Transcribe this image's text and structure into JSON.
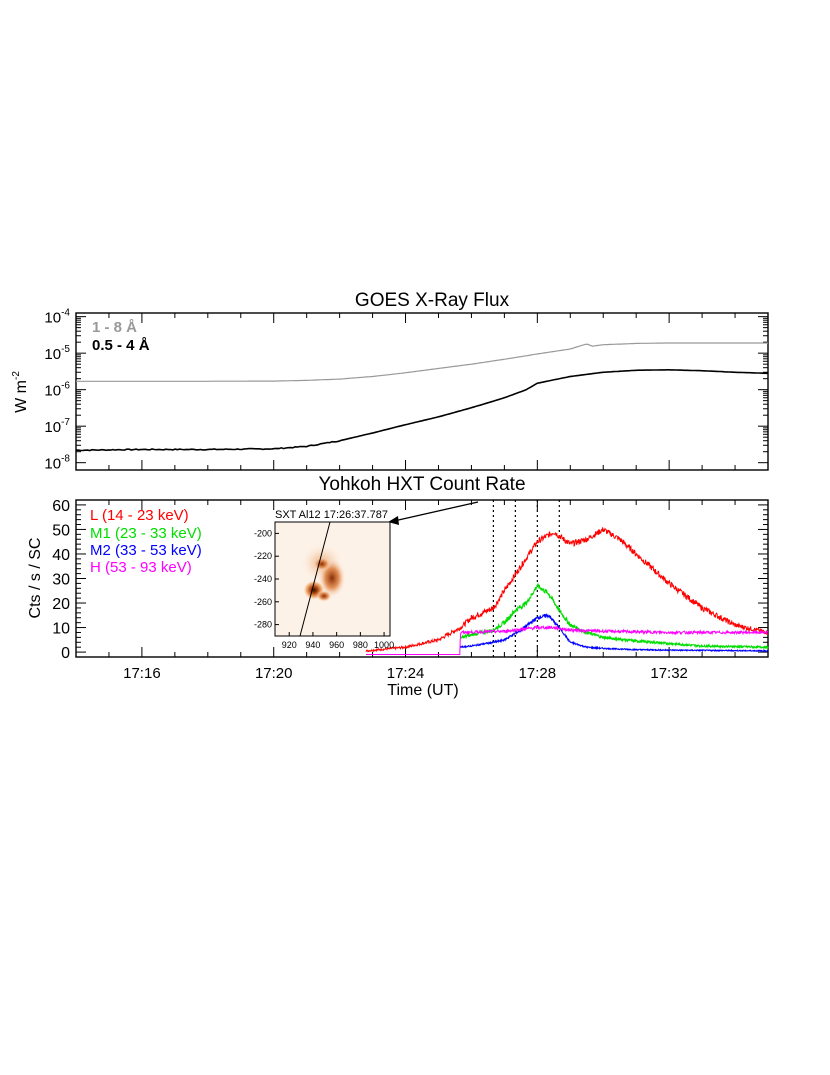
{
  "chart_data": [
    {
      "type": "line",
      "title": "GOES X-Ray Flux",
      "ylabel": "W m",
      "ylabel_sup": "-2",
      "yscale": "log",
      "ylim_exp": [
        -8.2,
        -3.9
      ],
      "yticks": [
        {
          "exp": -8,
          "base": "10",
          "sup": "-8"
        },
        {
          "exp": -7,
          "base": "10",
          "sup": "-7"
        },
        {
          "exp": -6,
          "base": "10",
          "sup": "-6"
        },
        {
          "exp": -5,
          "base": "10",
          "sup": "-5"
        },
        {
          "exp": -4,
          "base": "10",
          "sup": "-4"
        }
      ],
      "xlim": [
        "17:14",
        "17:35"
      ],
      "series": [
        {
          "name": "1 - 8 Å",
          "color": "#999999",
          "x": [
            "17:14",
            "17:16",
            "17:18",
            "17:20",
            "17:21",
            "17:22",
            "17:23",
            "17:24",
            "17:25",
            "17:26",
            "17:27",
            "17:28",
            "17:29",
            "17:29:30",
            "17:29:40",
            "17:30",
            "17:31",
            "17:32",
            "17:33",
            "17:35"
          ],
          "y": [
            1.7e-06,
            1.7e-06,
            1.7e-06,
            1.72e-06,
            1.8e-06,
            1.95e-06,
            2.3e-06,
            2.9e-06,
            3.8e-06,
            5e-06,
            6.8e-06,
            9.5e-06,
            1.3e-05,
            1.8e-05,
            1.55e-05,
            1.7e-05,
            1.85e-05,
            1.9e-05,
            1.9e-05,
            1.9e-05
          ]
        },
        {
          "name": "0.5 - 4 Å",
          "color": "#000000",
          "x": [
            "17:14",
            "17:16",
            "17:18",
            "17:20",
            "17:21",
            "17:22",
            "17:23",
            "17:24",
            "17:25",
            "17:26",
            "17:27",
            "17:27:40",
            "17:28",
            "17:29",
            "17:30",
            "17:31",
            "17:32",
            "17:33",
            "17:34",
            "17:35"
          ],
          "y": [
            2.2e-08,
            2.3e-08,
            2.3e-08,
            2.4e-08,
            2.8e-08,
            4e-08,
            6.5e-08,
            1.1e-07,
            1.8e-07,
            3.2e-07,
            6e-07,
            1e-06,
            1.5e-06,
            2.3e-06,
            3e-06,
            3.4e-06,
            3.5e-06,
            3.3e-06,
            3e-06,
            2.8e-06
          ]
        }
      ]
    },
    {
      "type": "line",
      "title": "Yohkoh HXT Count Rate",
      "xlabel": "Time (UT)",
      "ylabel": "Cts / s / SC",
      "ylim": [
        -2,
        62
      ],
      "yticks": [
        0,
        10,
        20,
        30,
        40,
        50,
        60
      ],
      "xlim": [
        "17:14",
        "17:35"
      ],
      "xticks": [
        "17:16",
        "17:20",
        "17:24",
        "17:28",
        "17:32"
      ],
      "vlines": [
        "17:26:40",
        "17:27:20",
        "17:28",
        "17:28:40"
      ],
      "series": [
        {
          "name": "L (14 - 23 keV)",
          "color": "#ff0000",
          "x": [
            "17:22:48",
            "17:24",
            "17:25",
            "17:25:40",
            "17:26",
            "17:26:40",
            "17:27:00",
            "17:27:30",
            "17:28",
            "17:28:30",
            "17:29",
            "17:29:30",
            "17:30",
            "17:30:30",
            "17:31",
            "17:32",
            "17:33",
            "17:34",
            "17:35"
          ],
          "y": [
            0.5,
            2,
            5,
            10,
            14,
            18,
            25,
            35,
            45,
            49,
            44,
            46,
            50,
            46,
            40,
            28,
            18,
            11,
            8
          ]
        },
        {
          "name": "M1 (23 - 33 keV)",
          "color": "#00dd00",
          "x": [
            "17:25:40",
            "17:26",
            "17:26:40",
            "17:27",
            "17:27:20",
            "17:27:40",
            "17:28",
            "17:28:20",
            "17:28:40",
            "17:29",
            "17:29:30",
            "17:30",
            "17:31",
            "17:32",
            "17:33",
            "17:35"
          ],
          "y": [
            6,
            7,
            9,
            12,
            17,
            20,
            27,
            24,
            17,
            11,
            8,
            6,
            4.5,
            3.5,
            2.5,
            2
          ]
        },
        {
          "name": "M2 (33 - 53 keV)",
          "color": "#0000ff",
          "x": [
            "17:25:40",
            "17:26",
            "17:26:40",
            "17:27",
            "17:27:30",
            "17:28",
            "17:28:20",
            "17:28:40",
            "17:29",
            "17:29:30",
            "17:30",
            "17:31",
            "17:32",
            "17:35"
          ],
          "y": [
            2,
            2.5,
            4,
            5,
            9,
            14,
            15,
            10,
            4,
            2,
            1.5,
            1,
            0.8,
            0.5
          ]
        },
        {
          "name": "H (53 - 93 keV)",
          "color": "#ff00ff",
          "x": [
            "17:22:48",
            "17:25:39",
            "17:25:40",
            "17:27",
            "17:28",
            "17:28:30",
            "17:29",
            "17:30",
            "17:32",
            "17:35"
          ],
          "y": [
            -1,
            -1,
            8,
            8.5,
            10,
            10,
            9,
            8.5,
            8,
            8
          ]
        }
      ],
      "inset": {
        "title": "SXT Al12 17:26:37.787",
        "xticks": [
          920,
          940,
          960,
          980,
          1000
        ],
        "yticks": [
          -200,
          -220,
          -240,
          -260,
          -280
        ],
        "xlim": [
          908,
          1005
        ],
        "ylim": [
          -290,
          -190
        ]
      }
    }
  ]
}
